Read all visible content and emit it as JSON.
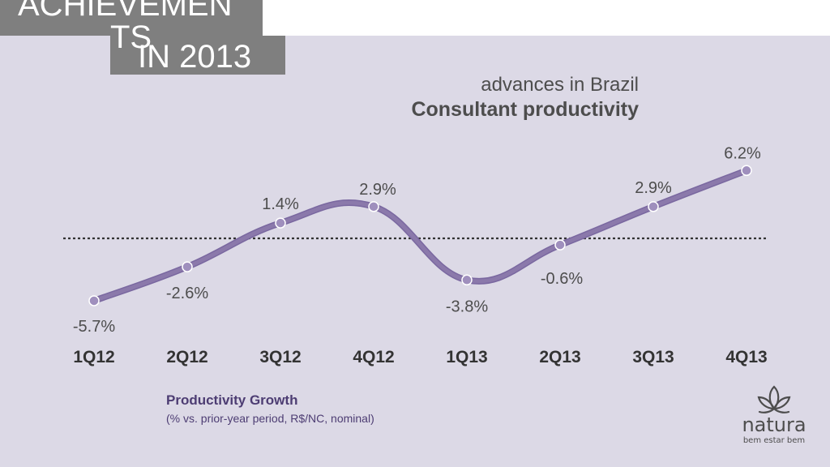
{
  "header": {
    "title_line1": "ACHIEVEMEN",
    "title_line1b": "TS",
    "title_line2": "IN 2013",
    "subtitle": "advances in Brazil",
    "heading": "Consultant productivity"
  },
  "chart_data": {
    "type": "line",
    "categories": [
      "1Q12",
      "2Q12",
      "3Q12",
      "4Q12",
      "1Q13",
      "2Q13",
      "3Q13",
      "4Q13"
    ],
    "values": [
      -5.7,
      -2.6,
      1.4,
      2.9,
      -3.8,
      -0.6,
      2.9,
      6.2
    ],
    "value_labels": [
      "-5.7%",
      "-2.6%",
      "1.4%",
      "2.9%",
      "-3.8%",
      "-0.6%",
      "2.9%",
      "6.2%"
    ],
    "reference_line": 0,
    "colors": {
      "line": "#8b79ab",
      "marker_fill": "#9f8fbd",
      "marker_stroke": "#ffffff",
      "zero_line": "#333333"
    }
  },
  "caption": {
    "title": "Productivity Growth",
    "note": "(% vs. prior-year period, R$/NC, nominal)"
  },
  "logo": {
    "word": "natura",
    "tagline": "bem estar bem",
    "icon": "natura-logo-icon"
  }
}
